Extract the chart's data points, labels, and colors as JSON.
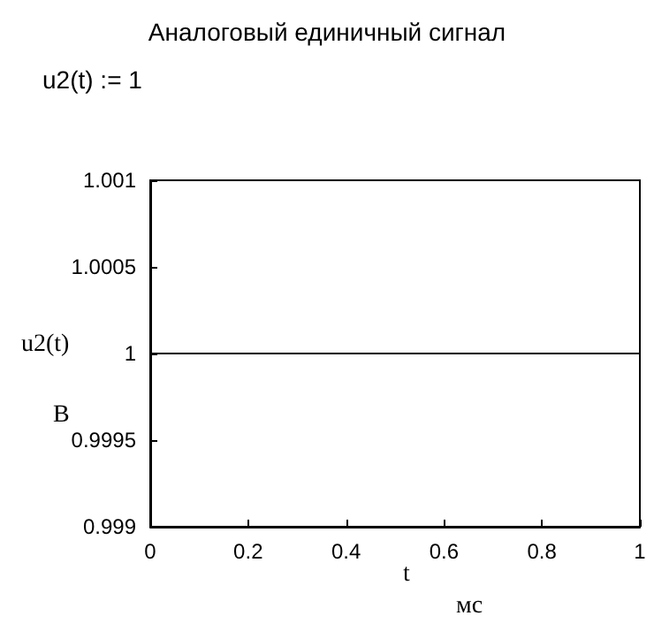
{
  "chart_data": {
    "type": "line",
    "title": "Аналоговый единичный сигнал",
    "annotations": [
      "u2(t) := 1"
    ],
    "xlabel": "t\nмс",
    "ylabel": "u2(t)\nВ",
    "x": [
      0,
      1
    ],
    "series": [
      {
        "color": "#000000",
        "values": [
          1,
          1
        ]
      }
    ],
    "xlim": [
      0,
      1
    ],
    "xticks": [
      0,
      0.2,
      0.4,
      0.6,
      0.8,
      1
    ],
    "ylim": [
      0.999,
      1.001
    ],
    "yticks": [
      0.999,
      0.9995,
      1,
      1.0005,
      1.001
    ],
    "grid": false,
    "marker": "none",
    "line_style": "solid"
  }
}
